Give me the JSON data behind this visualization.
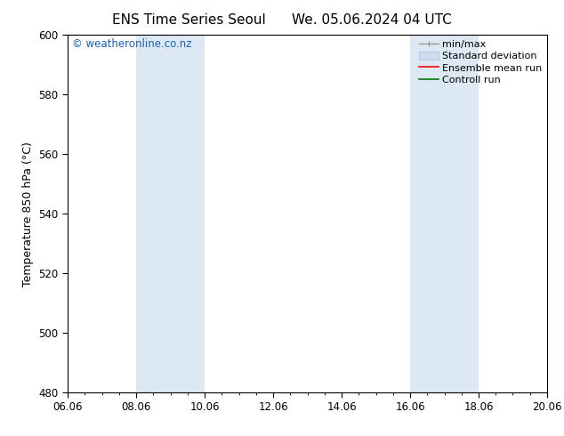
{
  "title_left": "ENS Time Series Seoul",
  "title_right": "We. 05.06.2024 04 UTC",
  "ylabel": "Temperature 850 hPa (°C)",
  "ylim": [
    480,
    600
  ],
  "yticks": [
    480,
    500,
    520,
    540,
    560,
    580,
    600
  ],
  "xtick_labels": [
    "06.06",
    "08.06",
    "10.06",
    "12.06",
    "14.06",
    "16.06",
    "18.06",
    "20.06"
  ],
  "xtick_positions": [
    0,
    2,
    4,
    6,
    8,
    10,
    12,
    14
  ],
  "shaded_bands": [
    {
      "x_start": 2.0,
      "x_end": 3.0,
      "color": "#dce9f5"
    },
    {
      "x_start": 3.0,
      "x_end": 4.0,
      "color": "#dce9f5"
    },
    {
      "x_start": 10.0,
      "x_end": 11.0,
      "color": "#dce9f5"
    },
    {
      "x_start": 11.0,
      "x_end": 12.0,
      "color": "#dce9f5"
    }
  ],
  "background_color": "#ffffff",
  "watermark_text": "© weatheronline.co.nz",
  "watermark_color": "#1a5fb5",
  "legend_labels": [
    "min/max",
    "Standard deviation",
    "Ensemble mean run",
    "Controll run"
  ],
  "legend_colors": [
    "#aaaaaa",
    "#ccddf0",
    "#ff0000",
    "#007700"
  ],
  "title_fontsize": 11,
  "axis_fontsize": 9,
  "tick_fontsize": 8.5,
  "legend_fontsize": 8,
  "watermark_fontsize": 8.5
}
